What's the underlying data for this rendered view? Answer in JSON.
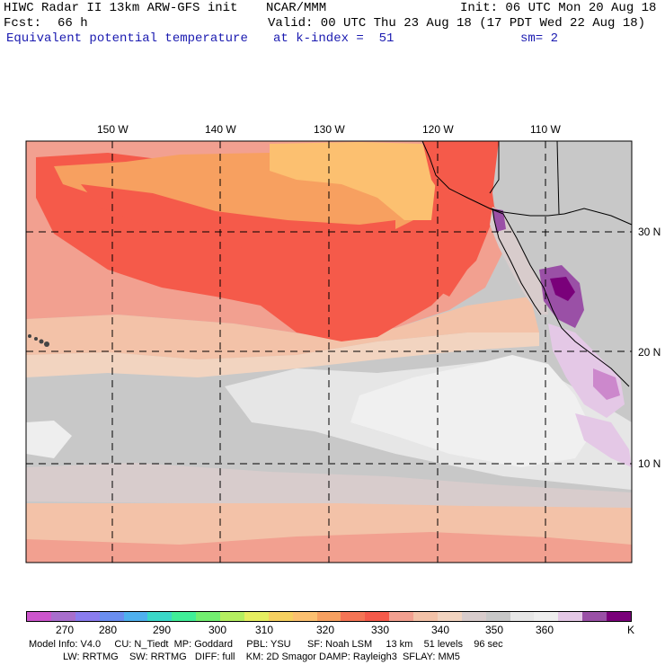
{
  "header": {
    "title": "HIWC Radar II 13km ARW-GFS init",
    "org": "NCAR/MMM",
    "init": "Init: 06 UTC Mon 20 Aug 18",
    "fcst_label": "Fcst:",
    "fcst_value": "66 h",
    "valid": "Valid: 00 UTC Thu 23 Aug 18 (17 PDT Wed 22 Aug 18)",
    "field": "Equivalent potential temperature",
    "level": "at k-index =  51",
    "smooth": "sm= 2"
  },
  "map": {
    "lon_labels": [
      "150 W",
      "140 W",
      "130 W",
      "120 W",
      "110 W"
    ],
    "lat_labels": [
      "30 N",
      "20 N",
      "10 N"
    ]
  },
  "colorbar": {
    "colors": [
      "#cc55cc",
      "#a86ecc",
      "#8a7cee",
      "#6a8ef0",
      "#4fb0ee",
      "#3ad8c8",
      "#40ee98",
      "#72ee70",
      "#b4ee60",
      "#e6ee60",
      "#f6d060",
      "#fcc070",
      "#f7a060",
      "#f57555",
      "#f55a4a",
      "#f2a090",
      "#f3c2a8",
      "#f2d4c0",
      "#d8cccc",
      "#c8c8c8",
      "#e6e6e6",
      "#eeeeee",
      "#e4c8e6",
      "#9a50a6",
      "#7a007a"
    ],
    "labels": [
      "270",
      "280",
      "290",
      "300",
      "310",
      "320",
      "330",
      "340",
      "350",
      "360",
      "K"
    ]
  },
  "footer": {
    "line1": "Model Info: V4.0     CU: N_Tiedt  MP: Goddard     PBL: YSU      SF: Noah LSM     13 km    51 levels    96 sec",
    "line2": "LW: RRTMG    SW: RRTMG   DIFF: full    KM: 2D Smagor DAMP: Rayleigh3  SFLAY: MM5"
  }
}
